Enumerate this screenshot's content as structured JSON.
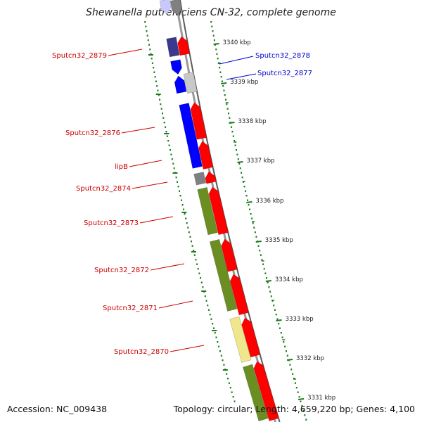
{
  "title": "Shewanella putrefaciens CN-32, complete genome",
  "footer": {
    "accession": "Accession: NC_009438",
    "summary": "Topology: circular; Length: 4,659,220 bp; Genes: 4,100"
  },
  "colors": {
    "label_red": "#cc0000",
    "label_blue": "#0000cc",
    "tick_green": "#1a7a1a",
    "backbone": "#888888",
    "gene_red": "#ff0000",
    "gene_blue": "#0000ff",
    "gene_navy": "#3a3a8c",
    "gene_olive": "#6b8e23",
    "gene_khaki": "#f0e68c",
    "gene_gray": "#808080",
    "gene_lightgray": "#c8c8c8",
    "gene_lavender": "#c8c8ff"
  },
  "scale_labels": [
    "3340 kbp",
    "3339 kbp",
    "3338 kbp",
    "3337 kbp",
    "3336 kbp",
    "3335 kbp",
    "3334 kbp",
    "3333 kbp",
    "3332 kbp",
    "3331 kbp"
  ],
  "gene_labels": [
    {
      "name": "Sputcn32_2879",
      "side": "left",
      "color": "red"
    },
    {
      "name": "Sputcn32_2878",
      "side": "right",
      "color": "blue"
    },
    {
      "name": "Sputcn32_2877",
      "side": "right",
      "color": "blue"
    },
    {
      "name": "Sputcn32_2876",
      "side": "left",
      "color": "red"
    },
    {
      "name": "lipB",
      "side": "left",
      "color": "red"
    },
    {
      "name": "Sputcn32_2874",
      "side": "left",
      "color": "red"
    },
    {
      "name": "Sputcn32_2873",
      "side": "left",
      "color": "red"
    },
    {
      "name": "Sputcn32_2872",
      "side": "left",
      "color": "red"
    },
    {
      "name": "Sputcn32_2871",
      "side": "left",
      "color": "red"
    },
    {
      "name": "Sputcn32_2870",
      "side": "left",
      "color": "red"
    }
  ]
}
